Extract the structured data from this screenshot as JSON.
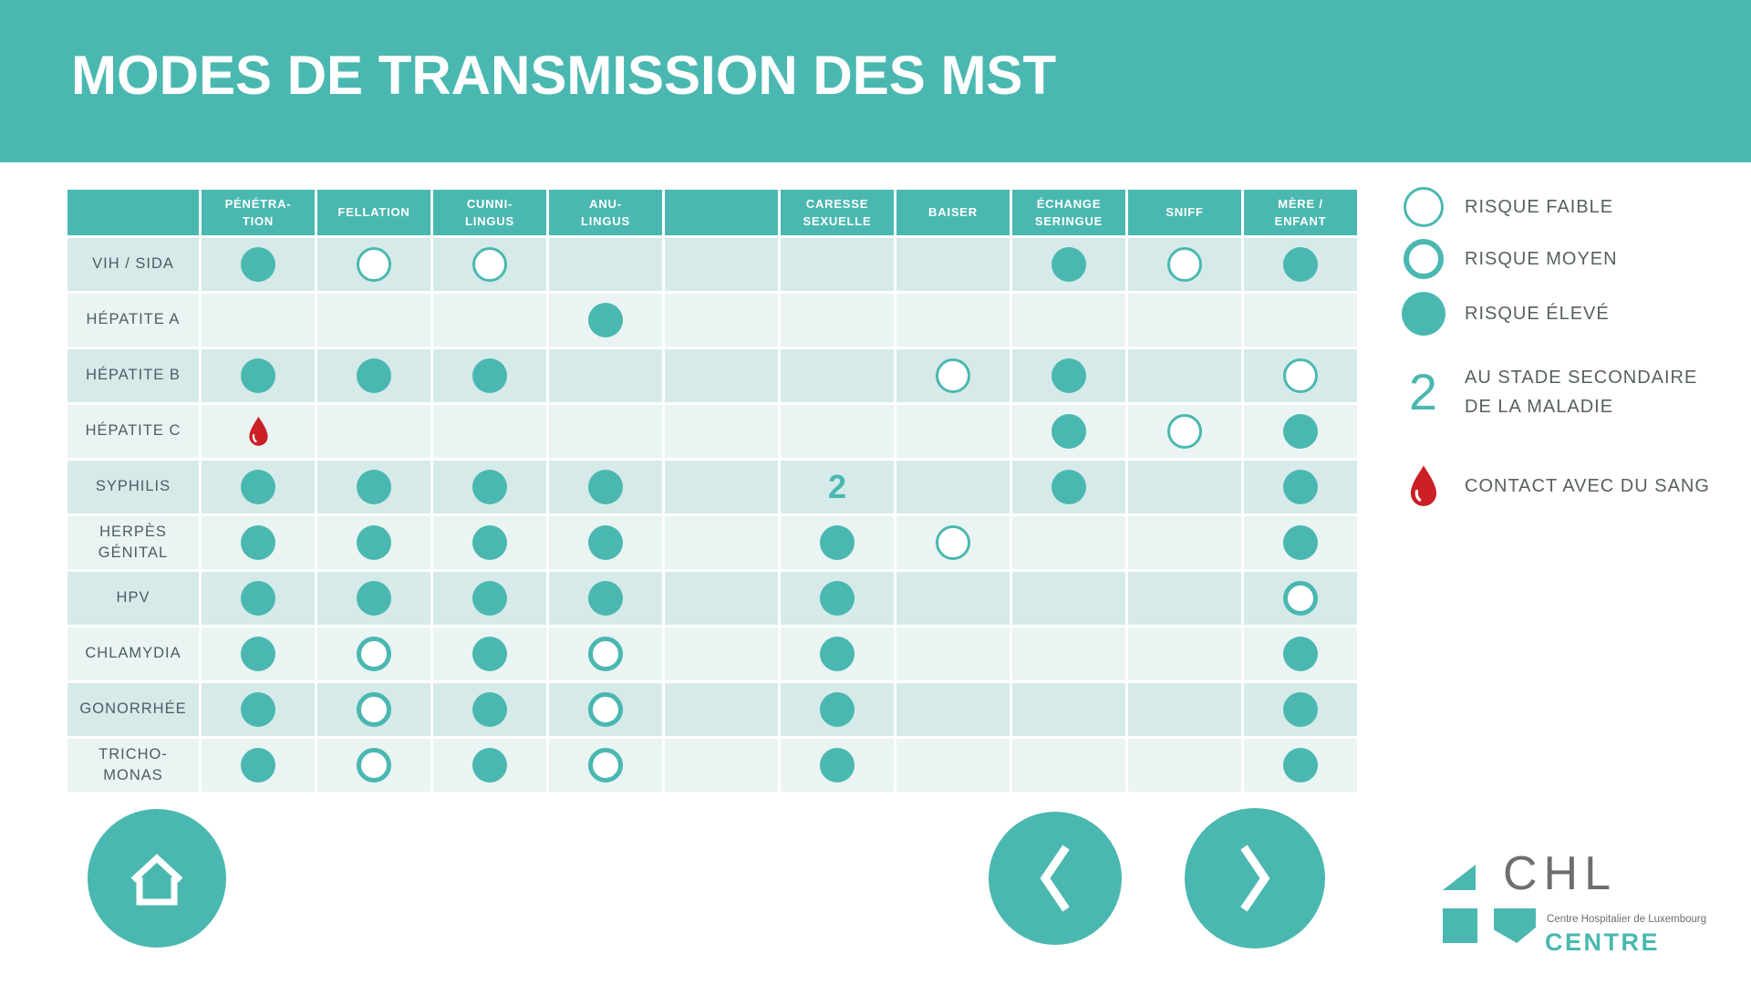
{
  "title": "MODES DE TRANSMISSION DES MST",
  "colors": {
    "accent_teal": "#4AB8B0",
    "row_dark": "#D6EAE9",
    "row_light": "#E9F4F3",
    "blood_red": "#CB2026",
    "label_text": "#4E5C63",
    "legend_text": "#575F5F",
    "logo_gray": "#6D6E71"
  },
  "table": {
    "columns": [
      "",
      "PÉNÉTRA-\nTION",
      "FELLATION",
      "CUNNI-\nLINGUS",
      "ANU-\nLINGUS",
      "",
      "CARESSE\nSEXUELLE",
      "BAISER",
      "ÉCHANGE\nSERINGUE",
      "SNIFF",
      "MÈRE /\nENFANT"
    ],
    "cell_legend": {
      "eleve": "risque élevé (cercle plein)",
      "moyen": "risque moyen (cercle contour épais)",
      "faible": "risque faible (cercle contour fin)",
      "2": "au stade secondaire de la maladie",
      "sang": "contact avec du sang"
    },
    "rows": [
      {
        "label": "VIH / SIDA",
        "cells": [
          "eleve",
          "faible",
          "faible",
          "",
          "",
          "",
          "",
          "eleve",
          "faible",
          "eleve"
        ]
      },
      {
        "label": "HÉPATITE A",
        "cells": [
          "",
          "",
          "",
          "eleve",
          "",
          "",
          "",
          "",
          "",
          ""
        ]
      },
      {
        "label": "HÉPATITE B",
        "cells": [
          "eleve",
          "eleve",
          "eleve",
          "",
          "",
          "",
          "faible",
          "eleve",
          "",
          "faible"
        ]
      },
      {
        "label": "HÉPATITE C",
        "cells": [
          "sang",
          "",
          "",
          "",
          "",
          "",
          "",
          "eleve",
          "faible",
          "eleve"
        ]
      },
      {
        "label": "SYPHILIS",
        "cells": [
          "eleve",
          "eleve",
          "eleve",
          "eleve",
          "",
          "2",
          "",
          "eleve",
          "",
          "eleve"
        ]
      },
      {
        "label": "HERPÈS\nGÉNITAL",
        "cells": [
          "eleve",
          "eleve",
          "eleve",
          "eleve",
          "",
          "eleve",
          "faible",
          "",
          "",
          "eleve"
        ]
      },
      {
        "label": "HPV",
        "cells": [
          "eleve",
          "eleve",
          "eleve",
          "eleve",
          "",
          "eleve",
          "",
          "",
          "",
          "moyen"
        ]
      },
      {
        "label": "CHLAMYDIA",
        "cells": [
          "eleve",
          "moyen",
          "eleve",
          "moyen",
          "",
          "eleve",
          "",
          "",
          "",
          "eleve"
        ]
      },
      {
        "label": "GONORRHÉE",
        "cells": [
          "eleve",
          "moyen",
          "eleve",
          "moyen",
          "",
          "eleve",
          "",
          "",
          "",
          "eleve"
        ]
      },
      {
        "label": "TRICHO-\nMONAS",
        "cells": [
          "eleve",
          "moyen",
          "eleve",
          "moyen",
          "",
          "eleve",
          "",
          "",
          "",
          "eleve"
        ]
      }
    ]
  },
  "legend": {
    "items": [
      {
        "icon": "circle-outline-thin",
        "label": "RISQUE FAIBLE"
      },
      {
        "icon": "circle-outline-thick",
        "label": "RISQUE MOYEN"
      },
      {
        "icon": "circle-filled",
        "label": "RISQUE ÉLEVÉ"
      },
      {
        "icon": "number-2",
        "symbol": "2",
        "label": "AU STADE SECONDAIRE\nDE LA MALADIE"
      },
      {
        "icon": "blood-drop",
        "label": "CONTACT AVEC DU SANG"
      }
    ]
  },
  "footer": {
    "buttons": [
      {
        "name": "home",
        "icon": "home-icon"
      },
      {
        "name": "previous",
        "icon": "chevron-left-icon"
      },
      {
        "name": "next",
        "icon": "chevron-right-icon"
      }
    ]
  },
  "logo": {
    "name": "CHL",
    "subtitle": "Centre Hospitalier de Luxembourg",
    "site": "CENTRE"
  }
}
